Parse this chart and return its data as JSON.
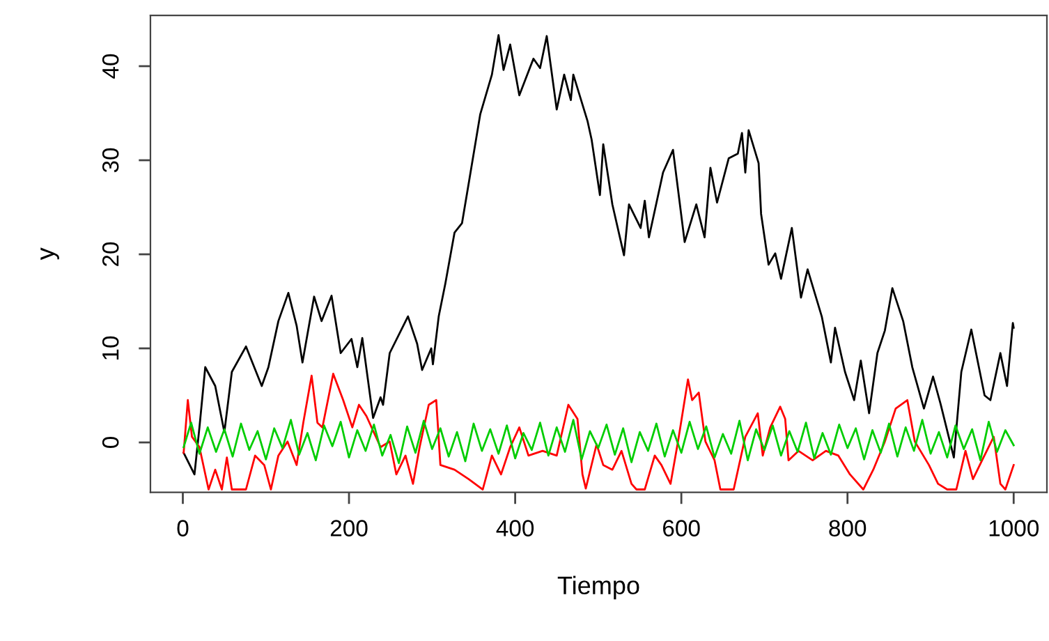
{
  "chart_data": {
    "type": "line",
    "xlabel": "Tiempo",
    "ylabel": "y",
    "xlim": [
      -39,
      1040
    ],
    "ylim": [
      -5.3,
      45.4
    ],
    "xticks": [
      0,
      200,
      400,
      600,
      800,
      1000
    ],
    "yticks": [
      0,
      10,
      20,
      30,
      40
    ],
    "grid": false,
    "series": [
      {
        "color": "#000000",
        "x": [
          1,
          14,
          20,
          27,
          39,
          50,
          59,
          76,
          95,
          103,
          115,
          127,
          137,
          144,
          158,
          167,
          179,
          190,
          203,
          210,
          216,
          229,
          238,
          241,
          249,
          271,
          282,
          288,
          299,
          301,
          308,
          316,
          327,
          336,
          344,
          358,
          372,
          380,
          386,
          394,
          405,
          422,
          430,
          438,
          450,
          459,
          467,
          470,
          487,
          492,
          502,
          506,
          517,
          531,
          537,
          551,
          556,
          561,
          578,
          590,
          604,
          618,
          628,
          635,
          643,
          657,
          668,
          673,
          677,
          681,
          693,
          696,
          705,
          713,
          720,
          733,
          744,
          752,
          769,
          780,
          785,
          797,
          808,
          816,
          826,
          836,
          845,
          854,
          867,
          878,
          892,
          903,
          912,
          928,
          937,
          949,
          965,
          972,
          984,
          992,
          999,
          1000
        ],
        "values": [
          -1.1,
          -3.4,
          1.6,
          8.0,
          6.0,
          1.1,
          7.5,
          10.2,
          6.0,
          8.0,
          12.9,
          15.9,
          12.4,
          8.5,
          15.5,
          12.9,
          15.6,
          9.5,
          11.0,
          8.0,
          11.1,
          2.6,
          4.8,
          4.0,
          9.5,
          13.4,
          10.5,
          7.7,
          10.0,
          8.3,
          13.4,
          16.9,
          22.3,
          23.3,
          27.5,
          34.9,
          39.1,
          43.3,
          39.6,
          42.3,
          36.9,
          40.8,
          39.8,
          43.2,
          35.4,
          39.1,
          36.4,
          39.1,
          34.2,
          32.2,
          26.3,
          31.7,
          25.3,
          19.9,
          25.3,
          22.8,
          25.7,
          21.8,
          28.7,
          31.1,
          21.3,
          25.3,
          21.8,
          29.2,
          25.5,
          30.2,
          30.7,
          32.9,
          28.7,
          33.2,
          29.7,
          24.3,
          18.9,
          20.1,
          17.4,
          22.8,
          15.4,
          18.4,
          13.4,
          8.5,
          12.2,
          7.5,
          4.5,
          8.7,
          3.1,
          9.5,
          11.9,
          16.4,
          12.9,
          8.0,
          3.6,
          7.0,
          4.1,
          -1.6,
          7.5,
          12.0,
          5.0,
          4.5,
          9.5,
          6.0,
          12.7,
          12.2
        ]
      },
      {
        "color": "#ff0000",
        "x": [
          1,
          6,
          11,
          20,
          31,
          39,
          47,
          53,
          59,
          76,
          87,
          98,
          106,
          115,
          126,
          137,
          145,
          155,
          162,
          168,
          181,
          193,
          204,
          212,
          221,
          238,
          249,
          257,
          268,
          277,
          285,
          296,
          305,
          310,
          327,
          344,
          361,
          372,
          383,
          394,
          405,
          416,
          433,
          450,
          464,
          475,
          481,
          485,
          498,
          506,
          517,
          528,
          540,
          546,
          556,
          568,
          576,
          587,
          596,
          608,
          613,
          621,
          629,
          640,
          647,
          663,
          677,
          692,
          698,
          707,
          719,
          725,
          729,
          741,
          758,
          774,
          789,
          803,
          819,
          831,
          845,
          858,
          872,
          881,
          898,
          909,
          920,
          931,
          942,
          951,
          962,
          976,
          984,
          990,
          1000
        ],
        "values": [
          -1.1,
          4.5,
          0.6,
          -0.5,
          -5.0,
          -2.9,
          -5.0,
          -1.6,
          -5.0,
          -5.0,
          -1.4,
          -2.4,
          -5.0,
          -1.4,
          0.1,
          -2.4,
          2.1,
          7.1,
          2.1,
          1.6,
          7.3,
          4.5,
          1.6,
          4.0,
          2.8,
          -0.5,
          0.1,
          -3.4,
          -1.4,
          -4.4,
          -0.5,
          4.0,
          4.5,
          -2.4,
          -2.9,
          -3.9,
          -5.0,
          -1.4,
          -3.4,
          -0.5,
          1.6,
          -1.4,
          -0.9,
          -1.4,
          4.0,
          2.5,
          -3.4,
          -4.9,
          -0.2,
          -2.4,
          -2.9,
          -0.9,
          -4.4,
          -5.0,
          -5.0,
          -1.4,
          -2.4,
          -4.4,
          0.1,
          6.7,
          4.5,
          5.3,
          0.1,
          -1.9,
          -5.0,
          -5.0,
          0.6,
          3.1,
          -1.4,
          1.6,
          3.8,
          2.5,
          -1.9,
          -0.9,
          -1.9,
          -0.9,
          -1.4,
          -3.4,
          -5.0,
          -2.9,
          0.1,
          3.6,
          4.5,
          0.1,
          -2.4,
          -4.4,
          -5.0,
          -5.0,
          -0.9,
          -3.9,
          -1.9,
          0.6,
          -4.4,
          -5.0,
          -2.4
        ]
      },
      {
        "color": "#00cd00",
        "x": [
          1,
          10,
          20,
          30,
          40,
          50,
          60,
          70,
          80,
          90,
          100,
          110,
          120,
          130,
          140,
          150,
          160,
          170,
          180,
          190,
          200,
          210,
          220,
          230,
          240,
          250,
          260,
          270,
          280,
          290,
          300,
          310,
          320,
          330,
          340,
          350,
          360,
          370,
          380,
          390,
          400,
          410,
          420,
          430,
          440,
          450,
          460,
          470,
          480,
          490,
          500,
          510,
          520,
          530,
          540,
          550,
          560,
          570,
          580,
          590,
          600,
          610,
          620,
          630,
          640,
          650,
          660,
          670,
          680,
          690,
          700,
          710,
          720,
          730,
          740,
          750,
          760,
          770,
          780,
          790,
          800,
          810,
          820,
          830,
          840,
          850,
          860,
          870,
          880,
          890,
          900,
          910,
          920,
          930,
          940,
          950,
          960,
          970,
          980,
          990,
          1000
        ],
        "values": [
          -0.5,
          2.1,
          -1.2,
          1.6,
          -1.0,
          1.4,
          -1.5,
          2.0,
          -0.8,
          1.2,
          -1.8,
          1.5,
          -0.6,
          2.4,
          -1.3,
          1.0,
          -1.9,
          1.8,
          -0.4,
          2.2,
          -1.6,
          1.3,
          -0.9,
          1.9,
          -1.4,
          0.8,
          -2.2,
          1.7,
          -1.1,
          2.3,
          -0.7,
          1.5,
          -1.5,
          1.1,
          -2.0,
          2.0,
          -0.9,
          1.4,
          -1.2,
          1.8,
          -1.7,
          1.0,
          -0.8,
          2.1,
          -1.4,
          1.6,
          -1.0,
          2.4,
          -1.8,
          1.2,
          -0.6,
          1.9,
          -1.3,
          1.5,
          -2.1,
          1.1,
          -0.9,
          2.0,
          -1.5,
          1.3,
          -1.1,
          2.2,
          -0.7,
          1.7,
          -1.6,
          0.9,
          -1.2,
          2.3,
          -1.9,
          1.4,
          -0.8,
          1.8,
          -1.4,
          1.2,
          -1.0,
          2.1,
          -1.7,
          1.0,
          -1.3,
          1.9,
          -0.6,
          1.5,
          -1.8,
          1.3,
          -1.1,
          2.0,
          -1.5,
          1.6,
          -0.9,
          2.4,
          -1.2,
          1.1,
          -1.6,
          1.8,
          -0.7,
          1.4,
          -1.9,
          2.2,
          -1.0,
          1.3,
          -0.3
        ]
      }
    ]
  }
}
